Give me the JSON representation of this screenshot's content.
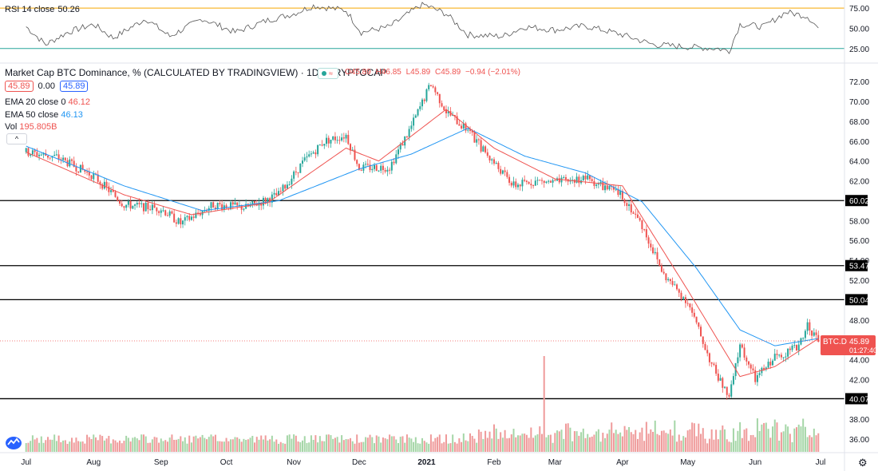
{
  "rsi": {
    "name": "RSI 14 close",
    "value": "50.26",
    "levels": [
      75,
      50,
      25
    ],
    "ticks": [
      "75.00",
      "50.00",
      "25.00"
    ]
  },
  "header": {
    "title": "Market Cap BTC Dominance, % (CALCULATED BY TRADINGVIEW) · 1D · CRYPTOCAP",
    "ohlc": {
      "o": "O45.89",
      "h": "H46.85",
      "l": "L45.89",
      "c": "C45.89",
      "chg": "−0.94 (−2.01%)"
    },
    "dots_symbol": "≈",
    "price_left": "45.89",
    "price_mid": "0.00",
    "price_right": "45.89",
    "ema20_label": "EMA 20 close 0",
    "ema20_value": "46.12",
    "ema50_label": "EMA 50 close",
    "ema50_value": "46.13",
    "vol_label": "Vol",
    "vol_value": "195.805B",
    "collapse_glyph": "^"
  },
  "colors": {
    "up": "#26a69a",
    "down": "#ef5350",
    "ema20": "#ef5350",
    "ema50": "#2196f3",
    "rsi_upper": "#f7a600",
    "rsi_lower": "#26a69a",
    "hline": "#000000",
    "vol_up": "#a5d6a7",
    "vol_down": "#ef9a9a"
  },
  "chart_data": [
    {
      "type": "candlestick",
      "title": "Market Cap BTC Dominance, % (CALCULATED BY TRADINGVIEW)",
      "ylim": [
        34.8,
        73.3
      ],
      "y_ticks": [
        "72.00",
        "70.00",
        "68.00",
        "66.00",
        "64.00",
        "62.00",
        "60.02",
        "58.00",
        "56.00",
        "54.00",
        "53.47",
        "52.00",
        "50.04",
        "48.00",
        "45.89",
        "44.00",
        "42.00",
        "40.07",
        "38.00",
        "36.00"
      ],
      "x_ticks": [
        "Jul",
        "Aug",
        "Sep",
        "Oct",
        "Nov",
        "Dec",
        "2021",
        "Feb",
        "Mar",
        "Apr",
        "May",
        "Jun",
        "Jul"
      ],
      "horizontal_levels": [
        60.02,
        53.47,
        50.04,
        40.07
      ],
      "last_price": 45.89,
      "last_price_label": "BTC.D",
      "countdown": "01:27:40",
      "close_anchors": [
        {
          "x": "2020-07-01",
          "y": 64.9
        },
        {
          "x": "2020-07-15",
          "y": 64.4
        },
        {
          "x": "2020-08-01",
          "y": 62.5
        },
        {
          "x": "2020-08-15",
          "y": 59.6
        },
        {
          "x": "2020-09-01",
          "y": 59.2
        },
        {
          "x": "2020-09-10",
          "y": 57.7
        },
        {
          "x": "2020-09-25",
          "y": 59.6
        },
        {
          "x": "2020-10-10",
          "y": 59.3
        },
        {
          "x": "2020-10-25",
          "y": 60.6
        },
        {
          "x": "2020-11-05",
          "y": 63.8
        },
        {
          "x": "2020-11-15",
          "y": 66.0
        },
        {
          "x": "2020-11-25",
          "y": 66.6
        },
        {
          "x": "2020-12-01",
          "y": 63.3
        },
        {
          "x": "2020-12-15",
          "y": 63.4
        },
        {
          "x": "2020-12-25",
          "y": 67.5
        },
        {
          "x": "2021-01-03",
          "y": 71.8
        },
        {
          "x": "2021-01-10",
          "y": 69.0
        },
        {
          "x": "2021-01-20",
          "y": 67.0
        },
        {
          "x": "2021-02-01",
          "y": 63.8
        },
        {
          "x": "2021-02-10",
          "y": 61.5
        },
        {
          "x": "2021-02-20",
          "y": 62.0
        },
        {
          "x": "2021-03-01",
          "y": 61.8
        },
        {
          "x": "2021-03-15",
          "y": 62.3
        },
        {
          "x": "2021-04-01",
          "y": 60.5
        },
        {
          "x": "2021-04-10",
          "y": 57.5
        },
        {
          "x": "2021-04-20",
          "y": 52.5
        },
        {
          "x": "2021-05-01",
          "y": 49.8
        },
        {
          "x": "2021-05-12",
          "y": 43.5
        },
        {
          "x": "2021-05-20",
          "y": 40.1
        },
        {
          "x": "2021-05-25",
          "y": 45.5
        },
        {
          "x": "2021-06-01",
          "y": 42.0
        },
        {
          "x": "2021-06-10",
          "y": 44.3
        },
        {
          "x": "2021-06-20",
          "y": 45.2
        },
        {
          "x": "2021-06-25",
          "y": 47.5
        },
        {
          "x": "2021-06-30",
          "y": 45.89
        }
      ],
      "ema20_anchors": [
        {
          "x": "2020-07-01",
          "y": 64.9
        },
        {
          "x": "2020-08-15",
          "y": 60.6
        },
        {
          "x": "2020-09-15",
          "y": 58.6
        },
        {
          "x": "2020-10-20",
          "y": 59.8
        },
        {
          "x": "2020-11-25",
          "y": 65.3
        },
        {
          "x": "2020-12-10",
          "y": 64.0
        },
        {
          "x": "2021-01-10",
          "y": 69.2
        },
        {
          "x": "2021-02-01",
          "y": 65.3
        },
        {
          "x": "2021-03-01",
          "y": 62.2
        },
        {
          "x": "2021-04-01",
          "y": 61.5
        },
        {
          "x": "2021-05-01",
          "y": 51.0
        },
        {
          "x": "2021-05-25",
          "y": 42.3
        },
        {
          "x": "2021-06-10",
          "y": 43.3
        },
        {
          "x": "2021-06-30",
          "y": 46.12
        }
      ],
      "ema50_anchors": [
        {
          "x": "2020-07-01",
          "y": 65.5
        },
        {
          "x": "2020-08-15",
          "y": 61.5
        },
        {
          "x": "2020-09-20",
          "y": 59.0
        },
        {
          "x": "2020-10-25",
          "y": 60.0
        },
        {
          "x": "2020-12-01",
          "y": 63.2
        },
        {
          "x": "2020-12-25",
          "y": 64.7
        },
        {
          "x": "2021-01-20",
          "y": 67.3
        },
        {
          "x": "2021-02-15",
          "y": 64.5
        },
        {
          "x": "2021-03-15",
          "y": 62.8
        },
        {
          "x": "2021-04-10",
          "y": 59.9
        },
        {
          "x": "2021-05-05",
          "y": 53.2
        },
        {
          "x": "2021-05-25",
          "y": 47.0
        },
        {
          "x": "2021-06-10",
          "y": 45.4
        },
        {
          "x": "2021-06-30",
          "y": 46.13
        }
      ],
      "volume_spike": {
        "x": "2021-02-24",
        "height_of_peak": 1.0
      },
      "rsi_anchors": [
        {
          "x": "2020-07-01",
          "y": 52
        },
        {
          "x": "2020-07-10",
          "y": 30
        },
        {
          "x": "2020-07-20",
          "y": 45
        },
        {
          "x": "2020-08-01",
          "y": 55
        },
        {
          "x": "2020-08-10",
          "y": 38
        },
        {
          "x": "2020-08-25",
          "y": 62
        },
        {
          "x": "2020-09-05",
          "y": 40
        },
        {
          "x": "2020-09-20",
          "y": 62
        },
        {
          "x": "2020-10-05",
          "y": 45
        },
        {
          "x": "2020-10-20",
          "y": 60
        },
        {
          "x": "2020-11-01",
          "y": 68
        },
        {
          "x": "2020-11-10",
          "y": 78
        },
        {
          "x": "2020-11-25",
          "y": 72
        },
        {
          "x": "2020-12-02",
          "y": 45
        },
        {
          "x": "2020-12-15",
          "y": 52
        },
        {
          "x": "2020-12-30",
          "y": 80
        },
        {
          "x": "2021-01-10",
          "y": 68
        },
        {
          "x": "2021-01-20",
          "y": 42
        },
        {
          "x": "2021-02-05",
          "y": 40
        },
        {
          "x": "2021-02-15",
          "y": 52
        },
        {
          "x": "2021-03-01",
          "y": 48
        },
        {
          "x": "2021-03-15",
          "y": 53
        },
        {
          "x": "2021-04-01",
          "y": 42
        },
        {
          "x": "2021-04-15",
          "y": 30
        },
        {
          "x": "2021-05-01",
          "y": 27
        },
        {
          "x": "2021-05-15",
          "y": 25
        },
        {
          "x": "2021-05-20",
          "y": 22
        },
        {
          "x": "2021-05-25",
          "y": 55
        },
        {
          "x": "2021-06-05",
          "y": 52
        },
        {
          "x": "2021-06-15",
          "y": 70
        },
        {
          "x": "2021-06-25",
          "y": 65
        },
        {
          "x": "2021-06-30",
          "y": 50.26
        }
      ]
    }
  ]
}
